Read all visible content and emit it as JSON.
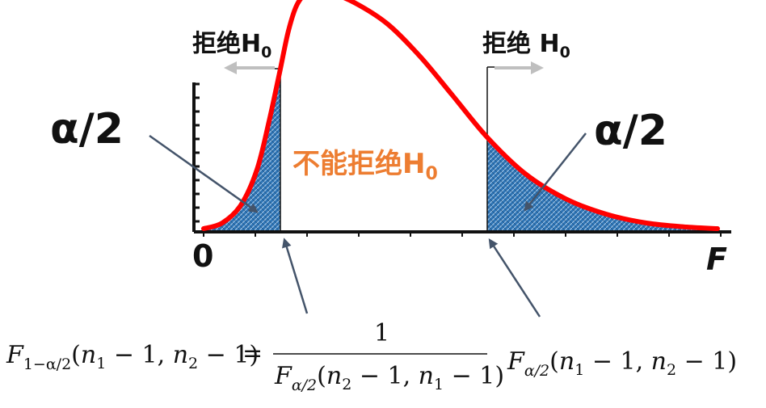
{
  "chart_data": {
    "type": "area",
    "x_axis_label": "F",
    "origin_label": "0",
    "curve": "F-distribution density",
    "left_tail": {
      "area_label": "α/2",
      "region_label": "拒绝",
      "region_symbol": "H",
      "region_subscript": "0"
    },
    "right_tail": {
      "area_label": "α/2",
      "region_label": "拒绝 ",
      "region_symbol": "H",
      "region_subscript": "0"
    },
    "middle": {
      "label": "不能拒绝",
      "symbol": "H",
      "subscript": "0"
    },
    "colors": {
      "curve": "#ff0000",
      "tail_fill": "#2e75b6",
      "middle_label": "#ed7d31",
      "arrows": "#44546a",
      "reject_arrows": "#bfbfbf"
    }
  },
  "formula": {
    "lower_F": "F",
    "lower_sub": "1−α/2",
    "lower_args_open": "(",
    "n1": "n",
    "n1_sub": "1",
    "minus_one_a": " − 1, ",
    "n2": "n",
    "n2_sub": "2",
    "minus_one_b": " − 1)",
    "equals": "=",
    "numerator": "1",
    "den_F": "F",
    "den_sub": "α/2",
    "den_open": "(",
    "den_n2": "n",
    "den_n2_sub": "2",
    "den_minus_a": " − 1, ",
    "den_n1": "n",
    "den_n1_sub": "1",
    "den_minus_b": " − 1)",
    "upper_F": "F",
    "upper_sub": "α/2",
    "upper_open": "(",
    "up_n1": "n",
    "up_n1_sub": "1",
    "up_minus_a": " − 1, ",
    "up_n2": "n",
    "up_n2_sub": "2",
    "up_minus_b": " − 1)"
  }
}
